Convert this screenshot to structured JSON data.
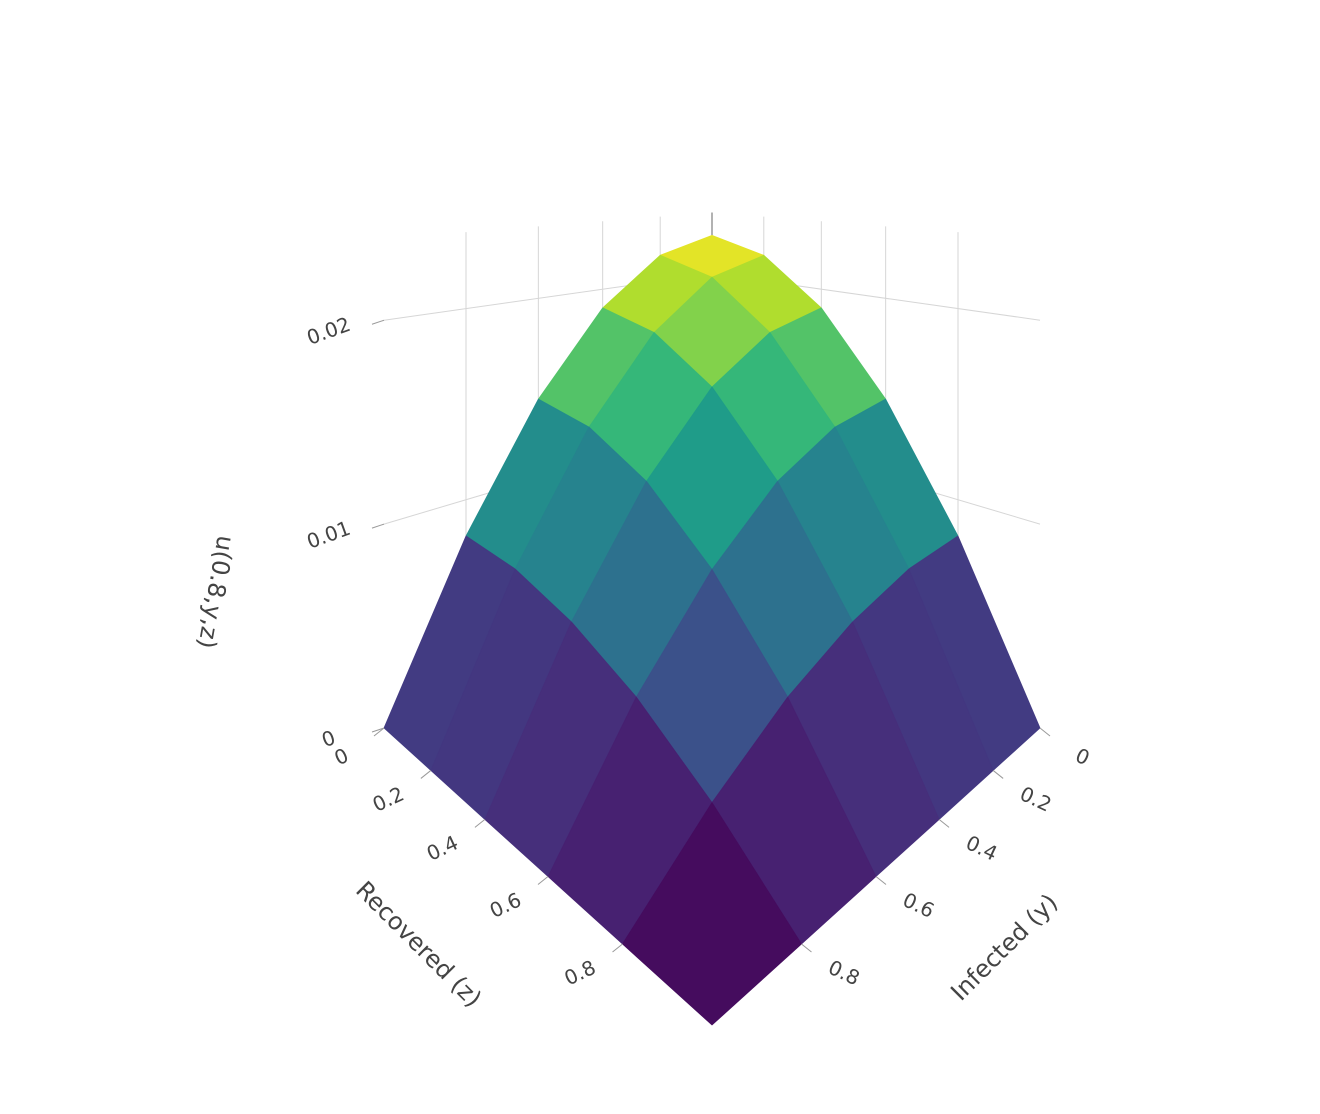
{
  "chart_data": {
    "type": "surface",
    "colorscale": "Viridis",
    "y_title": "Infected (y)",
    "z_title": "Recovered (z)",
    "u_title": "u(0.8,y,z)",
    "y": [
      0,
      0.2,
      0.4,
      0.6,
      0.8,
      1
    ],
    "z": [
      0,
      0.2,
      0.4,
      0.6,
      0.8,
      1
    ],
    "values": [
      [
        0.0225,
        0.0216,
        0.0189,
        0.0144,
        0.0081,
        0
      ],
      [
        0.0216,
        0.0207,
        0.0181,
        0.0138,
        0.0078,
        0
      ],
      [
        0.0189,
        0.0181,
        0.0159,
        0.0121,
        0.0068,
        0
      ],
      [
        0.0144,
        0.0138,
        0.0121,
        0.0092,
        0.0052,
        0
      ],
      [
        0.0081,
        0.0078,
        0.0068,
        0.0052,
        0.0029,
        0
      ],
      [
        0,
        0,
        0,
        0,
        0,
        0
      ]
    ],
    "ylim": [
      0,
      1
    ],
    "zlim": [
      0,
      1
    ],
    "ulim": [
      0,
      0.024
    ],
    "yticks": [
      0,
      0.2,
      0.4,
      0.6,
      0.8
    ],
    "zticks": [
      0,
      0.2,
      0.4,
      0.6,
      0.8
    ],
    "uticks": [
      0,
      0.01,
      0.02
    ],
    "grid": true
  }
}
